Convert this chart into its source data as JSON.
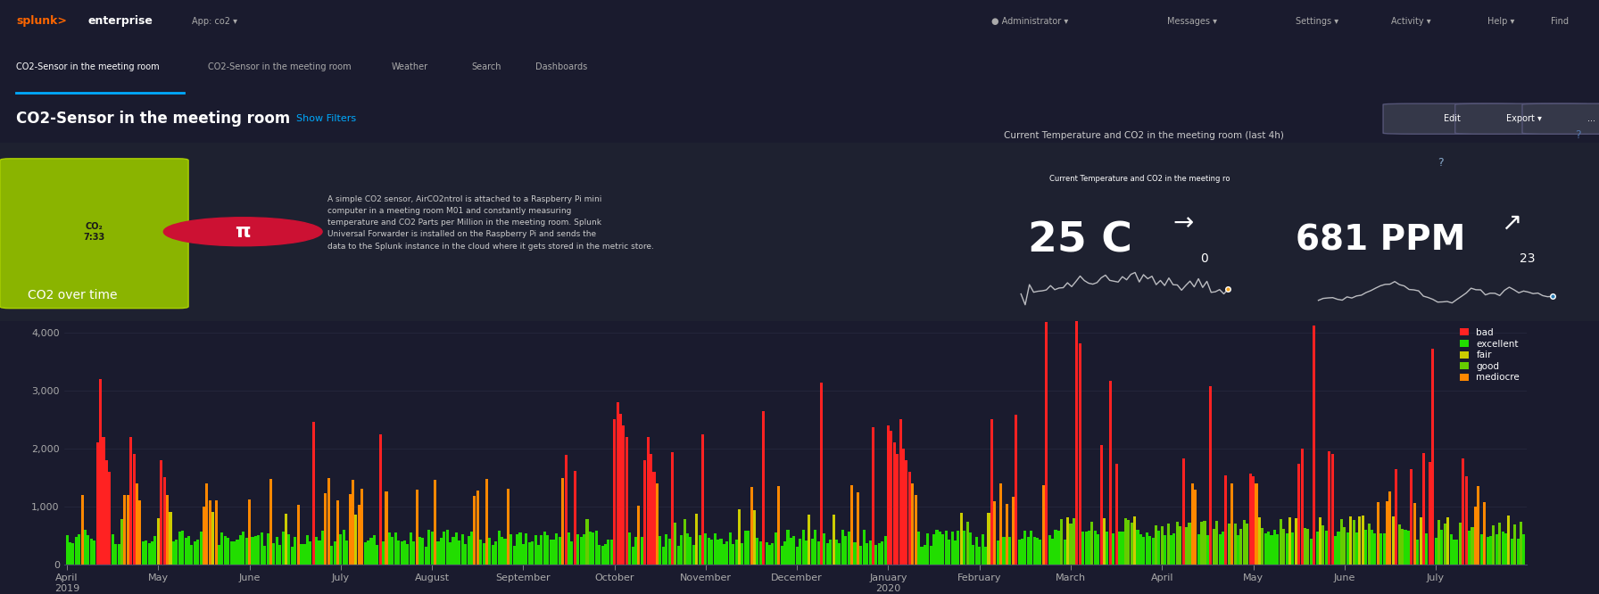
{
  "bg_color": "#1a1a2e",
  "dark_bg": "#16213e",
  "panel_bg": "#1e2130",
  "chart_bg": "#1a1b2e",
  "title_bar_bg": "#252836",
  "nav_bg": "#1c1e2d",
  "top_bar_bg": "#0f1117",
  "temp_panel_color": "#f5a623",
  "co2_panel_color": "#2a7db5",
  "text_color": "#ffffff",
  "dim_text": "#aaaaaa",
  "chart_title": "CO2 over time",
  "main_title": "CO2-Sensor in the meeting room",
  "subtitle": "Show Filters",
  "ylabel_color": "#cccccc",
  "grid_color": "#2d3047",
  "axis_color": "#444466",
  "legend_labels": [
    "bad",
    "excellent",
    "fair",
    "good",
    "mediocre"
  ],
  "legend_colors": [
    "#ff2222",
    "#22dd00",
    "#cccc00",
    "#66cc00",
    "#ff8800"
  ],
  "x_labels": [
    "April\n2019",
    "May",
    "June",
    "July",
    "August",
    "September",
    "October",
    "November",
    "December",
    "January\n2020",
    "February",
    "March",
    "April",
    "May",
    "June",
    "July"
  ],
  "yticks": [
    0,
    1000,
    2000,
    3000,
    4000
  ],
  "ymax": 4200,
  "temp_value": "25 C",
  "temp_delta": "+0",
  "co2_value": "681 PPM",
  "co2_delta": "+23",
  "panel_subtitle": "Current Temperature and CO2 in the meeting room (last 4h)"
}
